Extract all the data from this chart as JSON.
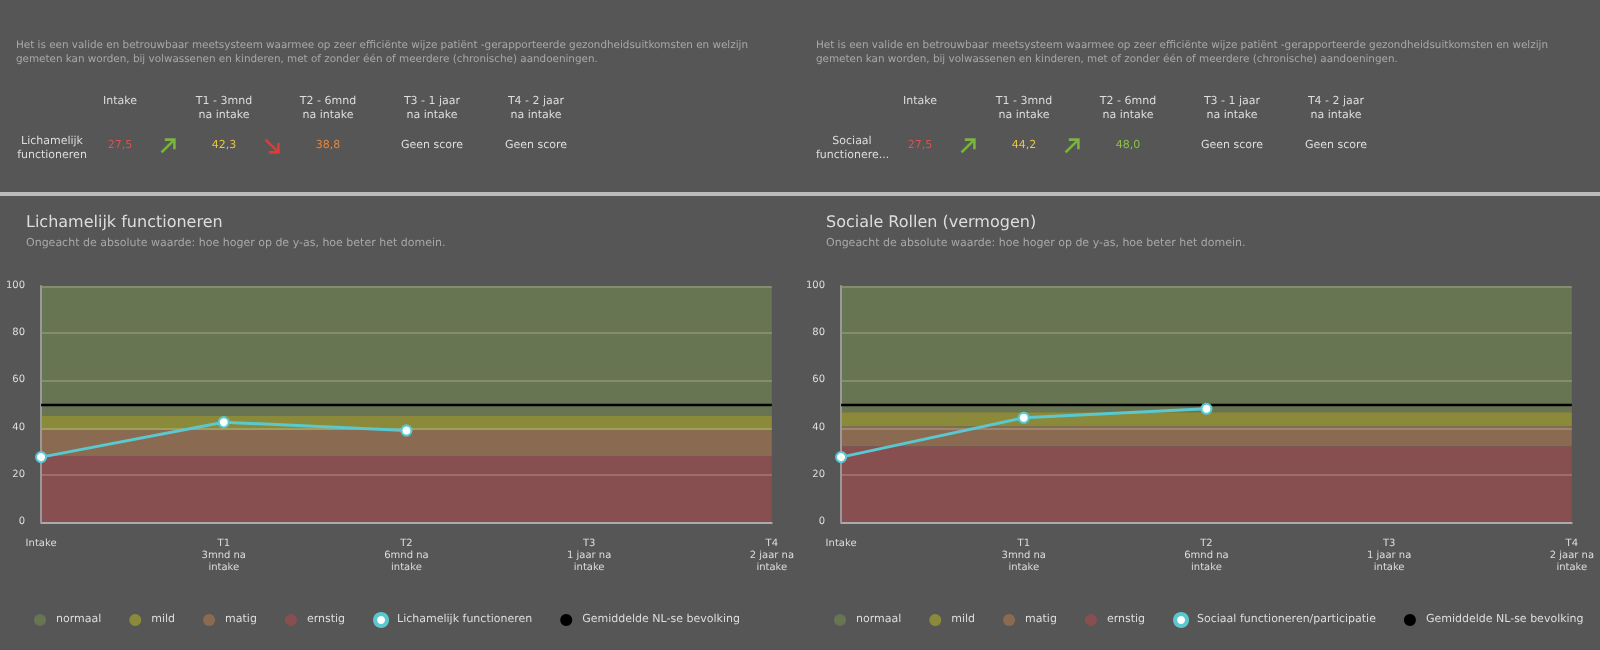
{
  "chart_data": [
    {
      "type": "other",
      "subtitle": "Het is een valide en betrouwbaar meetsysteem waarmee op zeer efficiënte wijze patiënt -gerapporteerde gezondheidsuitkomsten en welzijn gemeten kan worden, bij volwassenen en kinderen, met of zonder één of meerdere (chronische) aandoeningen.",
      "annotations": [
        "Intake",
        "T1 - 3mnd na intake",
        "T2 - 6mnd na intake",
        "T3 - 1 jaar na intake",
        "T4 - 2 jaar na intake",
        "Lichamelijk functioneren",
        "27,5",
        "42,3",
        "38,8",
        "Geen score",
        "Geen score"
      ],
      "colors": [
        "#d9534f",
        "#e8c547",
        "#e8873a",
        "#dddddd",
        "#dddddd"
      ]
    },
    {
      "type": "other",
      "subtitle": "Het is een valide en betrouwbaar meetsysteem waarmee op zeer efficiënte wijze patiënt -gerapporteerde gezondheidsuitkomsten en welzijn gemeten kan worden, bij volwassenen en kinderen, met of zonder één of meerdere (chronische) aandoeningen.",
      "annotations": [
        "Intake",
        "T1 - 3mnd na intake",
        "T2 - 6mnd na intake",
        "T3 - 1 jaar na intake",
        "T4 - 2 jaar na intake",
        "Sociaal functionere...",
        "27,5",
        "44,2",
        "48,0",
        "Geen score",
        "Geen score"
      ],
      "colors": [
        "#d9534f",
        "#e8c547",
        "#8bc34a",
        "#dddddd",
        "#dddddd"
      ]
    },
    {
      "type": "line",
      "title": "Lichamelijk functioneren",
      "subtitle": "Ongeacht de absolute waarde: hoe hoger op de y-as, hoe beter het domein.",
      "categories": [
        "Intake",
        "T1\n3mnd na\nintake",
        "T2\n6mnd na\nintake",
        "T3\n1 jaar na\nintake",
        "T4\n2 jaar na\nintake"
      ],
      "series": [
        {
          "name": "Lichamelijk functioneren",
          "color": "#5bc8d0",
          "values": [
            27.5,
            42.3,
            38.8,
            null,
            null
          ]
        }
      ],
      "bands": [
        {
          "axis": "y",
          "from": 45,
          "to": 100,
          "label": "normaal",
          "color": "#677552"
        },
        {
          "axis": "y",
          "from": 39,
          "to": 45,
          "label": "mild",
          "color": "#8a8a3a"
        },
        {
          "axis": "y",
          "from": 28,
          "to": 39,
          "label": "matig",
          "color": "#8a6a50"
        },
        {
          "axis": "y",
          "from": 0,
          "to": 28,
          "label": "ernstig",
          "color": "#874f50"
        }
      ],
      "ref_lines": [
        {
          "axis": "y",
          "value": 50,
          "label": "Gemiddelde NL-se bevolking",
          "color": "#000000"
        }
      ],
      "ylim": [
        0,
        100
      ],
      "yticks": [
        0,
        20,
        40,
        60,
        80,
        100
      ],
      "grid": "y",
      "legend": "bottom left",
      "marker": "circle"
    },
    {
      "type": "line",
      "title": "Sociale Rollen (vermogen)",
      "subtitle": "Ongeacht de absolute waarde: hoe hoger op de y-as, hoe beter het domein.",
      "categories": [
        "Intake",
        "T1\n3mnd na\nintake",
        "T2\n6mnd na\nintake",
        "T3\n1 jaar na\nintake",
        "T4\n2 jaar na\nintake"
      ],
      "series": [
        {
          "name": "Sociaal functioneren/participatie",
          "color": "#5bc8d0",
          "values": [
            27.5,
            44.2,
            48.0,
            null,
            null
          ]
        }
      ],
      "bands": [
        {
          "axis": "y",
          "from": 46.5,
          "to": 100,
          "label": "normaal",
          "color": "#677552"
        },
        {
          "axis": "y",
          "from": 40.5,
          "to": 46.5,
          "label": "mild",
          "color": "#8a8a3a"
        },
        {
          "axis": "y",
          "from": 32,
          "to": 40.5,
          "label": "matig",
          "color": "#8a6a50"
        },
        {
          "axis": "y",
          "from": 0,
          "to": 32,
          "label": "ernstig",
          "color": "#874f50"
        }
      ],
      "ref_lines": [
        {
          "axis": "y",
          "value": 50,
          "label": "Gemiddelde NL-se bevolking",
          "color": "#000000"
        }
      ],
      "ylim": [
        0,
        100
      ],
      "yticks": [
        0,
        20,
        40,
        60,
        80,
        100
      ],
      "grid": "y",
      "legend": "bottom left",
      "marker": "circle"
    }
  ]
}
